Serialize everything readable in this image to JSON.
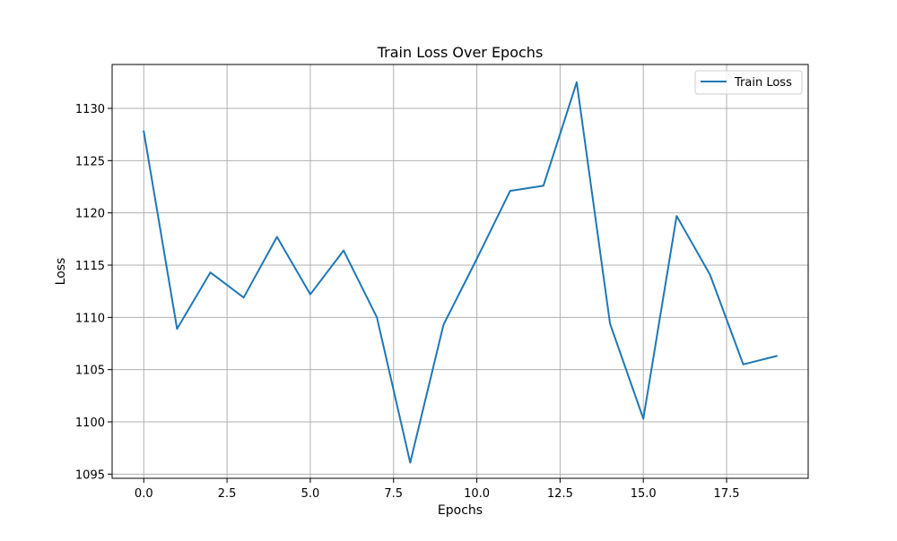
{
  "chart_data": {
    "type": "line",
    "title": "Train Loss Over Epochs",
    "xlabel": "Epochs",
    "ylabel": "Loss",
    "xlim": [
      -0.95,
      19.95
    ],
    "ylim": [
      1094.6,
      1134.2
    ],
    "xticks": [
      0.0,
      2.5,
      5.0,
      7.5,
      10.0,
      12.5,
      15.0,
      17.5
    ],
    "xtick_labels": [
      "0.0",
      "2.5",
      "5.0",
      "7.5",
      "10.0",
      "12.5",
      "15.0",
      "17.5"
    ],
    "yticks": [
      1095,
      1100,
      1105,
      1110,
      1115,
      1120,
      1125,
      1130
    ],
    "ytick_labels": [
      "1095",
      "1100",
      "1105",
      "1110",
      "1115",
      "1120",
      "1125",
      "1130"
    ],
    "grid": true,
    "legend_position": "top-right",
    "x": [
      0,
      1,
      2,
      3,
      4,
      5,
      6,
      7,
      8,
      9,
      10,
      11,
      12,
      13,
      14,
      15,
      16,
      17,
      18,
      19
    ],
    "series": [
      {
        "name": "Train Loss",
        "color": "#1f77b4",
        "values": [
          1127.8,
          1108.9,
          1114.3,
          1111.9,
          1117.7,
          1112.2,
          1116.4,
          1110.0,
          1096.1,
          1109.3,
          1115.6,
          1122.1,
          1122.6,
          1132.5,
          1109.4,
          1100.3,
          1119.7,
          1114.1,
          1105.5,
          1106.3
        ]
      }
    ]
  }
}
